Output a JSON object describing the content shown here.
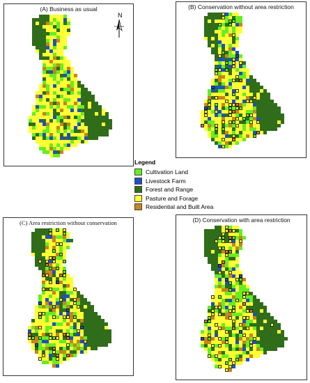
{
  "panels": [
    {
      "id": "A",
      "title": "(A) Business as usual"
    },
    {
      "id": "B",
      "title": "(B) Conservation without area restriction"
    },
    {
      "id": "C",
      "title": "(C) Area restriction without conservation"
    },
    {
      "id": "D",
      "title": "(D) Conservation with area restriction"
    }
  ],
  "north_arrow": {
    "label": "N"
  },
  "legend": {
    "title": "Legend",
    "items": [
      {
        "label": "Cultivation Land",
        "color": "#66ee22"
      },
      {
        "label": "Livestock Farm",
        "color": "#1f4fc4"
      },
      {
        "label": "Forest and Range",
        "color": "#2f6d1a"
      },
      {
        "label": "Pasture and Forage",
        "color": "#ffff33"
      },
      {
        "label": "Residential and Built Area",
        "color": "#c8841a"
      }
    ]
  },
  "colors": {
    "cultivation": "#66ee22",
    "livestock": "#1f4fc4",
    "forest": "#2f6d1a",
    "pasture": "#ffff33",
    "residential": "#c8841a",
    "border": "#000000"
  }
}
